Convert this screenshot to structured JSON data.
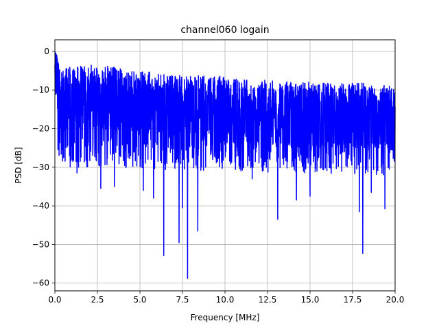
{
  "chart_data": {
    "type": "line",
    "title": "channel060 logain",
    "xlabel": "Frequency [MHz]",
    "ylabel": "PSD [dB]",
    "xlim": [
      0,
      20
    ],
    "ylim": [
      -62,
      3
    ],
    "xticks": [
      0,
      2.5,
      5,
      7.5,
      10,
      12.5,
      15,
      17.5,
      20
    ],
    "xtick_labels": [
      "0.0",
      "2.5",
      "5.0",
      "7.5",
      "10.0",
      "12.5",
      "15.0",
      "17.5",
      "20.0"
    ],
    "yticks": [
      0,
      -10,
      -20,
      -30,
      -40,
      -50,
      -60
    ],
    "ytick_labels": [
      "0",
      "−10",
      "−20",
      "−30",
      "−40",
      "−50",
      "−60"
    ],
    "grid": true,
    "legend": "none",
    "series": [
      {
        "color": "#0000ff",
        "summary": "Dense noisy PSD trace; upper envelope near -5 dB at low frequencies declining to about -9 dB near 20 MHz, typical floor around -22 to -30 dB, with deep notches.",
        "upper_envelope": {
          "x": [
            0,
            0.1,
            0.5,
            2.5,
            5.0,
            7.5,
            10.0,
            12.5,
            15.0,
            17.5,
            20.0
          ],
          "y": [
            0,
            -1,
            -4,
            -3.5,
            -5,
            -6,
            -6.5,
            -7.5,
            -8,
            -8,
            -9
          ]
        },
        "notches": [
          {
            "x": 1.3,
            "y": -31.5
          },
          {
            "x": 2.7,
            "y": -35.5
          },
          {
            "x": 3.5,
            "y": -35
          },
          {
            "x": 5.2,
            "y": -36
          },
          {
            "x": 5.8,
            "y": -38
          },
          {
            "x": 6.4,
            "y": -52.8
          },
          {
            "x": 7.3,
            "y": -49.5
          },
          {
            "x": 7.5,
            "y": -40.5
          },
          {
            "x": 7.8,
            "y": -58.8
          },
          {
            "x": 8.4,
            "y": -46.5
          },
          {
            "x": 11.6,
            "y": -33
          },
          {
            "x": 13.1,
            "y": -43.5
          },
          {
            "x": 14.2,
            "y": -38.5
          },
          {
            "x": 15.0,
            "y": -37.5
          },
          {
            "x": 17.9,
            "y": -41.5
          },
          {
            "x": 18.1,
            "y": -52.3
          },
          {
            "x": 18.6,
            "y": -36.5
          },
          {
            "x": 19.4,
            "y": -40.8
          }
        ]
      }
    ]
  }
}
